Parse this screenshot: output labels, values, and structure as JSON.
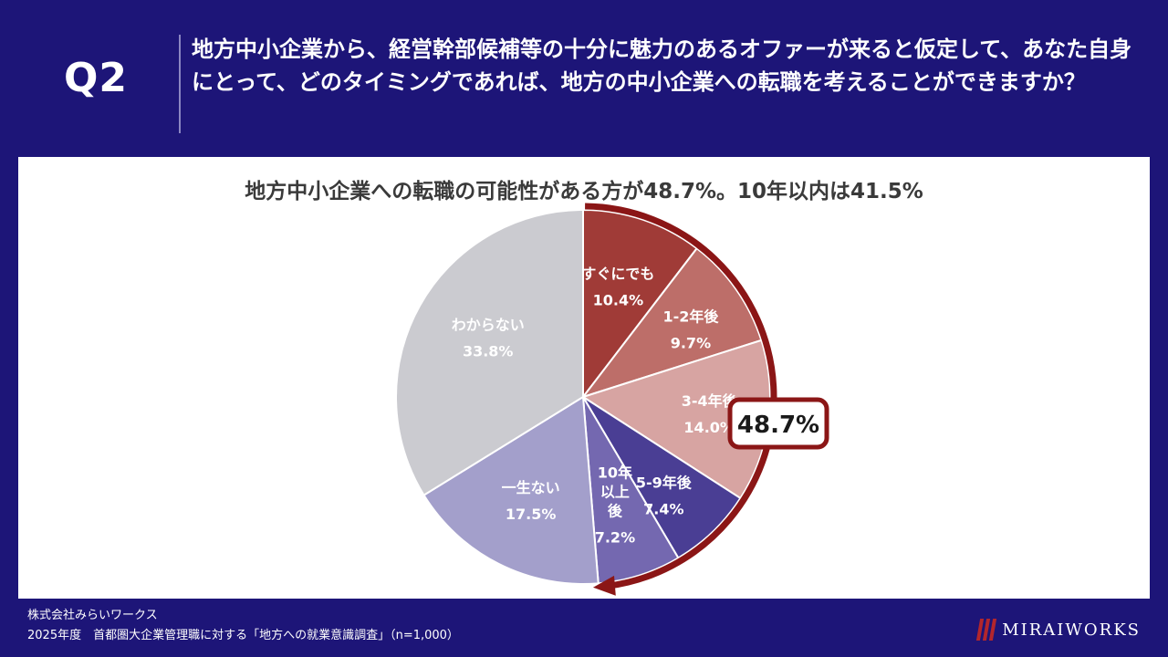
{
  "header": {
    "q_label": "Q2",
    "question": "地方中小企業から、経営幹部候補等の十分に魅力のあるオファーが来ると仮定して、あなた自身にとって、どのタイミングであれば、地方の中小企業への転職を考えることができますか？"
  },
  "chart_data": {
    "type": "pie",
    "title": "地方中小企業への転職の可能性がある方が48.7%。10年以内は41.5%",
    "start": "top, clockwise",
    "slices": [
      {
        "label": "すぐにでも",
        "value": 10.4,
        "value_label": "10.4%",
        "color": "#a03b37"
      },
      {
        "label": "1-2年後",
        "value": 9.7,
        "value_label": "9.7%",
        "color": "#bd6e69"
      },
      {
        "label": "3-4年後",
        "value": 14.0,
        "value_label": "14.0%",
        "color": "#d7a4a2"
      },
      {
        "label": "5-9年後",
        "value": 7.4,
        "value_label": "7.4%",
        "color": "#4a3e94"
      },
      {
        "label": "10年以上後",
        "label_lines": [
          "10年",
          "以上",
          "後"
        ],
        "value": 7.2,
        "value_label": "7.2%",
        "color": "#7468b0"
      },
      {
        "label": "一生ない",
        "value": 17.5,
        "value_label": "17.5%",
        "color": "#a39fcb"
      },
      {
        "label": "わからない",
        "value": 33.8,
        "value_label": "33.8%",
        "color": "#cbcbd0"
      }
    ],
    "annotation": {
      "text": "48.7%",
      "color": "#8b1616"
    }
  },
  "footer": {
    "company": "株式会社みらいワークス",
    "source": "2025年度　首都圏大企業管理職に対する「地方への就業意識調査」（n=1,000）"
  },
  "logo": {
    "text": "MIRAIWORKS"
  }
}
